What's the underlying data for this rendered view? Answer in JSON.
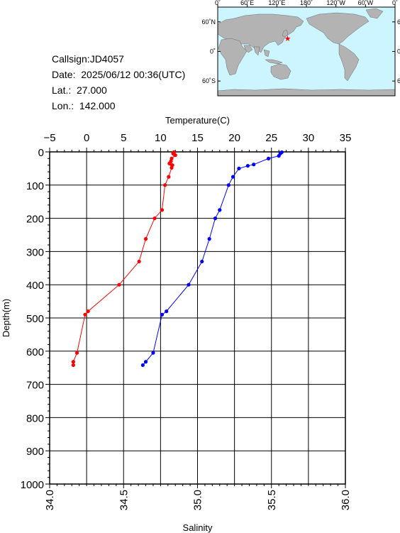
{
  "station": {
    "callsign": "Callsign:JD4057",
    "date": "Date:  2025/06/12 00:36(UTC)",
    "lat": "Lat.:  27.000",
    "lon": "Lon.:  142.000"
  },
  "map": {
    "top_labels": [
      "0˚",
      "60˚E",
      "120˚E",
      "180˚",
      "120˚W",
      "60˚W",
      "0˚"
    ],
    "right_labels": [
      "60˚N",
      "0˚",
      "60˚S"
    ],
    "marker": {
      "lon": 142.0,
      "lat": 27.0,
      "color": "#ff0000"
    },
    "ocean_color": "#ccf5ff",
    "land_color": "#b3b3b3"
  },
  "chart_data": {
    "type": "line",
    "ylabel": "Depth(m)",
    "ylim": [
      0,
      1000
    ],
    "y_ticks": [
      "0",
      "100",
      "200",
      "300",
      "400",
      "500",
      "600",
      "700",
      "800",
      "900",
      "1000"
    ],
    "y_inverted": true,
    "grid": true,
    "top_axis": {
      "label": "Temperature(C)",
      "range": [
        -5,
        35
      ],
      "ticks": [
        "-5",
        "0",
        "5",
        "10",
        "15",
        "20",
        "25",
        "30",
        "35"
      ]
    },
    "bottom_axis": {
      "label": "Salinity",
      "range": [
        34.0,
        36.0
      ],
      "ticks": [
        "34.0",
        "34.5",
        "35.0",
        "35.5",
        "36.0"
      ]
    },
    "series": [
      {
        "axis": "top",
        "color": "#ff0000",
        "points": [
          [
            11.8,
            1
          ],
          [
            11.7,
            5
          ],
          [
            11.9,
            8
          ],
          [
            12.0,
            10
          ],
          [
            11.5,
            20
          ],
          [
            11.4,
            28
          ],
          [
            11.6,
            40
          ],
          [
            11.2,
            35
          ],
          [
            11.5,
            48
          ],
          [
            11.1,
            75
          ],
          [
            10.6,
            100
          ],
          [
            10.2,
            175
          ],
          [
            9.2,
            200
          ],
          [
            8.0,
            262
          ],
          [
            7.1,
            330
          ],
          [
            4.4,
            400
          ],
          [
            0.2,
            480
          ],
          [
            -0.2,
            490
          ],
          [
            -1.3,
            605
          ],
          [
            -1.8,
            632
          ],
          [
            -1.8,
            642
          ]
        ]
      },
      {
        "axis": "bottom",
        "color": "#0000ff",
        "points": [
          [
            35.57,
            1
          ],
          [
            35.56,
            5
          ],
          [
            35.55,
            12
          ],
          [
            35.48,
            20
          ],
          [
            35.38,
            38
          ],
          [
            35.34,
            42
          ],
          [
            35.28,
            50
          ],
          [
            35.24,
            75
          ],
          [
            35.21,
            100
          ],
          [
            35.15,
            175
          ],
          [
            35.12,
            200
          ],
          [
            35.08,
            262
          ],
          [
            35.03,
            330
          ],
          [
            34.94,
            400
          ],
          [
            34.79,
            480
          ],
          [
            34.76,
            490
          ],
          [
            34.7,
            605
          ],
          [
            34.65,
            632
          ],
          [
            34.63,
            642
          ]
        ]
      }
    ]
  }
}
